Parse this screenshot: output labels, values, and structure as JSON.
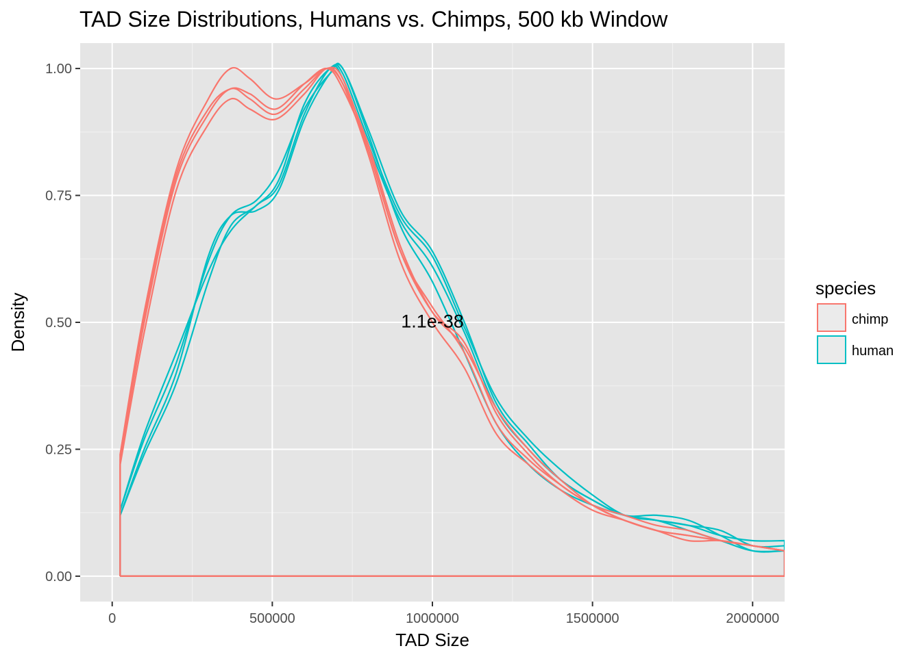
{
  "chart_data": {
    "type": "line",
    "title": "TAD Size Distributions, Humans vs. Chimps, 500 kb Window",
    "xlabel": "TAD Size",
    "ylabel": "Density",
    "xlim": [
      -100000,
      2100000
    ],
    "ylim": [
      -0.05,
      1.05
    ],
    "x_ticks": [
      0,
      500000,
      1000000,
      1500000,
      2000000
    ],
    "x_tick_labels": [
      "0",
      "500000",
      "1000000",
      "1500000",
      "2000000"
    ],
    "y_ticks": [
      0,
      0.25,
      0.5,
      0.75,
      1.0
    ],
    "y_tick_labels": [
      "0.00",
      "0.25",
      "0.50",
      "0.75",
      "1.00"
    ],
    "grid": true,
    "legend": {
      "title": "species",
      "position": "right",
      "entries": [
        {
          "label": "chimp",
          "color": "#f8766d"
        },
        {
          "label": "human",
          "color": "#00bfc4"
        }
      ]
    },
    "annotations": [
      {
        "text": "1.1e-38",
        "x": 1000000,
        "y": 0.49
      }
    ],
    "series": [
      {
        "group": "human",
        "color": "#00bfc4",
        "points": [
          [
            25000,
            0
          ],
          [
            25000,
            0.13
          ],
          [
            100000,
            0.27
          ],
          [
            200000,
            0.42
          ],
          [
            300000,
            0.62
          ],
          [
            370000,
            0.71
          ],
          [
            450000,
            0.74
          ],
          [
            520000,
            0.8
          ],
          [
            600000,
            0.92
          ],
          [
            680000,
            0.99
          ],
          [
            720000,
            1.0
          ],
          [
            800000,
            0.88
          ],
          [
            900000,
            0.72
          ],
          [
            1000000,
            0.64
          ],
          [
            1100000,
            0.5
          ],
          [
            1200000,
            0.34
          ],
          [
            1300000,
            0.26
          ],
          [
            1400000,
            0.19
          ],
          [
            1500000,
            0.15
          ],
          [
            1600000,
            0.12
          ],
          [
            1700000,
            0.11
          ],
          [
            1800000,
            0.1
          ],
          [
            1900000,
            0.08
          ],
          [
            2000000,
            0.07
          ],
          [
            2100000,
            0.07
          ]
        ]
      },
      {
        "group": "human",
        "color": "#00bfc4",
        "points": [
          [
            25000,
            0
          ],
          [
            25000,
            0.12
          ],
          [
            100000,
            0.24
          ],
          [
            200000,
            0.38
          ],
          [
            300000,
            0.58
          ],
          [
            370000,
            0.69
          ],
          [
            450000,
            0.73
          ],
          [
            520000,
            0.78
          ],
          [
            600000,
            0.93
          ],
          [
            680000,
            1.0
          ],
          [
            720000,
            0.99
          ],
          [
            800000,
            0.86
          ],
          [
            900000,
            0.71
          ],
          [
            1000000,
            0.63
          ],
          [
            1100000,
            0.49
          ],
          [
            1200000,
            0.35
          ],
          [
            1300000,
            0.27
          ],
          [
            1400000,
            0.21
          ],
          [
            1500000,
            0.16
          ],
          [
            1600000,
            0.12
          ],
          [
            1700000,
            0.11
          ],
          [
            1800000,
            0.1
          ],
          [
            1900000,
            0.09
          ],
          [
            2000000,
            0.06
          ],
          [
            2100000,
            0.06
          ]
        ]
      },
      {
        "group": "human",
        "color": "#00bfc4",
        "points": [
          [
            25000,
            0
          ],
          [
            25000,
            0.13
          ],
          [
            100000,
            0.28
          ],
          [
            200000,
            0.44
          ],
          [
            300000,
            0.6
          ],
          [
            370000,
            0.68
          ],
          [
            450000,
            0.73
          ],
          [
            520000,
            0.77
          ],
          [
            600000,
            0.91
          ],
          [
            680000,
            1.0
          ],
          [
            720000,
            0.98
          ],
          [
            800000,
            0.85
          ],
          [
            900000,
            0.7
          ],
          [
            1000000,
            0.61
          ],
          [
            1100000,
            0.48
          ],
          [
            1200000,
            0.33
          ],
          [
            1300000,
            0.25
          ],
          [
            1400000,
            0.19
          ],
          [
            1500000,
            0.15
          ],
          [
            1600000,
            0.12
          ],
          [
            1700000,
            0.12
          ],
          [
            1800000,
            0.11
          ],
          [
            1900000,
            0.08
          ],
          [
            2000000,
            0.05
          ],
          [
            2100000,
            0.05
          ]
        ]
      },
      {
        "group": "human",
        "color": "#00bfc4",
        "points": [
          [
            25000,
            0
          ],
          [
            25000,
            0.12
          ],
          [
            100000,
            0.25
          ],
          [
            200000,
            0.4
          ],
          [
            300000,
            0.63
          ],
          [
            370000,
            0.71
          ],
          [
            450000,
            0.72
          ],
          [
            520000,
            0.76
          ],
          [
            600000,
            0.9
          ],
          [
            680000,
            0.99
          ],
          [
            720000,
            1.0
          ],
          [
            800000,
            0.87
          ],
          [
            900000,
            0.69
          ],
          [
            1000000,
            0.58
          ],
          [
            1100000,
            0.44
          ],
          [
            1200000,
            0.3
          ],
          [
            1300000,
            0.22
          ],
          [
            1400000,
            0.17
          ],
          [
            1500000,
            0.14
          ],
          [
            1600000,
            0.12
          ],
          [
            1700000,
            0.11
          ],
          [
            1800000,
            0.09
          ],
          [
            1900000,
            0.07
          ],
          [
            2000000,
            0.05
          ],
          [
            2100000,
            0.05
          ]
        ]
      },
      {
        "group": "chimp",
        "color": "#f8766d",
        "points": [
          [
            25000,
            0
          ],
          [
            25000,
            0.24
          ],
          [
            100000,
            0.52
          ],
          [
            200000,
            0.8
          ],
          [
            300000,
            0.94
          ],
          [
            370000,
            1.0
          ],
          [
            430000,
            0.98
          ],
          [
            510000,
            0.94
          ],
          [
            600000,
            0.97
          ],
          [
            670000,
            1.0
          ],
          [
            720000,
            0.97
          ],
          [
            800000,
            0.85
          ],
          [
            900000,
            0.65
          ],
          [
            1000000,
            0.52
          ],
          [
            1100000,
            0.45
          ],
          [
            1200000,
            0.33
          ],
          [
            1300000,
            0.25
          ],
          [
            1400000,
            0.19
          ],
          [
            1500000,
            0.14
          ],
          [
            1600000,
            0.11
          ],
          [
            1700000,
            0.09
          ],
          [
            1800000,
            0.08
          ],
          [
            1900000,
            0.07
          ],
          [
            2000000,
            0.06
          ],
          [
            2100000,
            0.05
          ]
        ]
      },
      {
        "group": "chimp",
        "color": "#f8766d",
        "points": [
          [
            25000,
            0
          ],
          [
            25000,
            0.23
          ],
          [
            100000,
            0.5
          ],
          [
            200000,
            0.78
          ],
          [
            300000,
            0.91
          ],
          [
            370000,
            0.96
          ],
          [
            430000,
            0.94
          ],
          [
            510000,
            0.91
          ],
          [
            600000,
            0.96
          ],
          [
            670000,
            1.0
          ],
          [
            720000,
            0.98
          ],
          [
            800000,
            0.84
          ],
          [
            900000,
            0.64
          ],
          [
            1000000,
            0.53
          ],
          [
            1100000,
            0.44
          ],
          [
            1200000,
            0.3
          ],
          [
            1300000,
            0.23
          ],
          [
            1400000,
            0.18
          ],
          [
            1500000,
            0.14
          ],
          [
            1600000,
            0.12
          ],
          [
            1700000,
            0.1
          ],
          [
            1800000,
            0.09
          ],
          [
            1900000,
            0.07
          ],
          [
            2000000,
            0.06
          ],
          [
            2100000,
            0.05
          ]
        ]
      },
      {
        "group": "chimp",
        "color": "#f8766d",
        "points": [
          [
            25000,
            0
          ],
          [
            25000,
            0.22
          ],
          [
            100000,
            0.48
          ],
          [
            200000,
            0.76
          ],
          [
            300000,
            0.89
          ],
          [
            370000,
            0.94
          ],
          [
            430000,
            0.92
          ],
          [
            510000,
            0.9
          ],
          [
            600000,
            0.95
          ],
          [
            670000,
            1.0
          ],
          [
            720000,
            0.97
          ],
          [
            800000,
            0.83
          ],
          [
            900000,
            0.62
          ],
          [
            1000000,
            0.5
          ],
          [
            1100000,
            0.41
          ],
          [
            1200000,
            0.28
          ],
          [
            1300000,
            0.22
          ],
          [
            1400000,
            0.17
          ],
          [
            1500000,
            0.13
          ],
          [
            1600000,
            0.11
          ],
          [
            1700000,
            0.09
          ],
          [
            1800000,
            0.08
          ],
          [
            1900000,
            0.07
          ],
          [
            2000000,
            0.06
          ],
          [
            2100000,
            0.05
          ]
        ]
      },
      {
        "group": "chimp",
        "color": "#f8766d",
        "points": [
          [
            25000,
            0
          ],
          [
            25000,
            0.24
          ],
          [
            100000,
            0.51
          ],
          [
            200000,
            0.79
          ],
          [
            300000,
            0.92
          ],
          [
            370000,
            0.96
          ],
          [
            430000,
            0.95
          ],
          [
            510000,
            0.92
          ],
          [
            600000,
            0.97
          ],
          [
            670000,
            1.0
          ],
          [
            720000,
            0.96
          ],
          [
            800000,
            0.84
          ],
          [
            900000,
            0.64
          ],
          [
            1000000,
            0.52
          ],
          [
            1100000,
            0.46
          ],
          [
            1200000,
            0.32
          ],
          [
            1300000,
            0.24
          ],
          [
            1400000,
            0.18
          ],
          [
            1500000,
            0.14
          ],
          [
            1600000,
            0.11
          ],
          [
            1700000,
            0.09
          ],
          [
            1800000,
            0.07
          ],
          [
            1900000,
            0.07
          ],
          [
            2000000,
            0.06
          ],
          [
            2100000,
            0.05
          ]
        ]
      }
    ]
  }
}
